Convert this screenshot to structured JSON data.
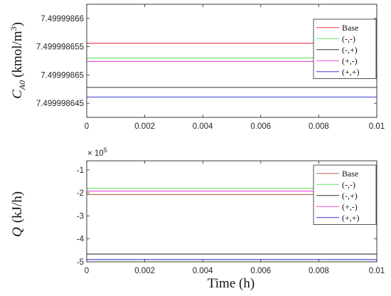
{
  "chart_data": [
    {
      "type": "line",
      "x": [
        0,
        0.01
      ],
      "xlim": [
        0,
        0.01
      ],
      "xticks": [
        "0",
        "0.002",
        "0.004",
        "0.006",
        "0.008",
        "0.01"
      ],
      "xlabel": "",
      "ylabel": "C_A0 (kmol/m3)",
      "ylabel_parts": {
        "sym": "C",
        "sub": "A0",
        "unit": "(kmol/m",
        "sup": "3",
        "close": ")"
      },
      "ylim": [
        7.4999986425,
        7.4999986625
      ],
      "yticks": [
        {
          "value": 7.499998645,
          "label": "7.499998645"
        },
        {
          "value": 7.49999865,
          "label": "7.49999865"
        },
        {
          "value": 7.499998655,
          "label": "7.499998655"
        },
        {
          "value": 7.49999866,
          "label": "7.49999866"
        }
      ],
      "legend_position": "top-right",
      "series": [
        {
          "name": "Base",
          "color": "#e8393b",
          "values": [
            7.4999986556,
            7.4999986556
          ]
        },
        {
          "name": "(-,-)",
          "color": "#5ee35e",
          "values": [
            7.499998653,
            7.499998653
          ]
        },
        {
          "name": "(-,+)",
          "color": "#333333",
          "values": [
            7.4999986478,
            7.4999986478
          ]
        },
        {
          "name": "(+,-)",
          "color": "#e64ad6",
          "values": [
            7.4999986524,
            7.4999986524
          ]
        },
        {
          "name": "(+,+)",
          "color": "#3a3ad6",
          "values": [
            7.4999986461,
            7.4999986461
          ]
        }
      ]
    },
    {
      "type": "line",
      "x": [
        0,
        0.01
      ],
      "xlim": [
        0,
        0.01
      ],
      "xticks": [
        "0",
        "0.002",
        "0.004",
        "0.006",
        "0.008",
        "0.01"
      ],
      "xlabel": "Time (h)",
      "ylabel": "Q (kJ/h)",
      "ylabel_parts": {
        "sym": "Q",
        "unit": "(kJ/h)"
      },
      "exponent_label": "× 10",
      "exponent_power": "5",
      "ylim": [
        -5,
        -0.6
      ],
      "yticks": [
        {
          "value": -1,
          "label": "-1"
        },
        {
          "value": -2,
          "label": "-2"
        },
        {
          "value": -3,
          "label": "-3"
        },
        {
          "value": -4,
          "label": "-4"
        },
        {
          "value": -5,
          "label": "-5"
        }
      ],
      "legend_position": "top-right",
      "series": [
        {
          "name": "Base",
          "color": "#b5654a",
          "values": [
            -2.07,
            -2.07
          ]
        },
        {
          "name": "(-,-)",
          "color": "#5ee35e",
          "values": [
            -1.8,
            -1.8
          ]
        },
        {
          "name": "(-,+)",
          "color": "#333333",
          "values": [
            -4.66,
            -4.66
          ]
        },
        {
          "name": "(+,-)",
          "color": "#e64ad6",
          "values": [
            -1.92,
            -1.92
          ]
        },
        {
          "name": "(+,+)",
          "color": "#3a3ad6",
          "values": [
            -4.9,
            -4.9
          ]
        }
      ]
    }
  ]
}
